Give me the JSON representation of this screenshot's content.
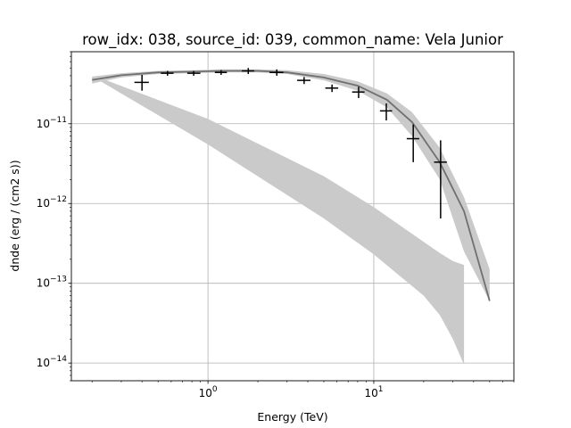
{
  "chart_data": {
    "type": "line",
    "title": "row_idx: 038, source_id: 039, common_name: Vela Junior",
    "xlabel": "Energy (TeV)",
    "ylabel": "dnde (erg / (cm2 s))",
    "xscale": "log",
    "yscale": "log",
    "xlim": [
      0.15,
      70
    ],
    "ylim": [
      6e-15,
      8e-11
    ],
    "grid": true,
    "x_ticks": [
      {
        "value": 1,
        "base": "10",
        "exp": "0"
      },
      {
        "value": 10,
        "base": "10",
        "exp": "1"
      }
    ],
    "y_ticks": [
      {
        "value": 1e-14,
        "base": "10",
        "exp": "−14"
      },
      {
        "value": 1e-13,
        "base": "10",
        "exp": "−13"
      },
      {
        "value": 1e-12,
        "base": "10",
        "exp": "−12"
      },
      {
        "value": 1e-11,
        "base": "10",
        "exp": "−11"
      }
    ],
    "colors": {
      "band": "#cacaca",
      "model": "#707070",
      "points": "#000000",
      "grid": "#b0b0b0"
    },
    "model_band": {
      "x": [
        0.2,
        0.3,
        0.5,
        0.8,
        1.2,
        2,
        3,
        5,
        8,
        12,
        17,
        25,
        35,
        50
      ],
      "upper": [
        3.9e-11,
        4.3e-11,
        4.6e-11,
        4.7e-11,
        4.8e-11,
        4.8e-11,
        4.7e-11,
        4.2e-11,
        3.4e-11,
        2.4e-11,
        1.4e-11,
        5e-12,
        1.2e-12,
        1.5e-13
      ],
      "lower": [
        3.2e-11,
        3.8e-11,
        4.2e-11,
        4.3e-11,
        4.4e-11,
        4.4e-11,
        4.2e-11,
        3.5e-11,
        2.6e-11,
        1.6e-11,
        7e-12,
        2e-12,
        2.5e-13,
        6e-14
      ]
    },
    "second_band": {
      "x": [
        0.22,
        1,
        5,
        10,
        20,
        25,
        30,
        35
      ],
      "upper": [
        3.8e-11,
        1.15e-11,
        2.2e-12,
        9e-13,
        3.3e-13,
        2.4e-13,
        1.9e-13,
        1.7e-13
      ],
      "lower": [
        3.5e-11,
        5.5e-12,
        6.5e-13,
        2.3e-13,
        7e-14,
        4e-14,
        2e-14,
        9.5e-15
      ]
    },
    "model_curve": {
      "x": [
        0.2,
        0.3,
        0.5,
        0.8,
        1.2,
        2,
        3,
        5,
        8,
        12,
        17,
        25,
        35,
        50
      ],
      "y": [
        3.55e-11,
        4.05e-11,
        4.4e-11,
        4.5e-11,
        4.6e-11,
        4.6e-11,
        4.4e-11,
        3.8e-11,
        3e-11,
        2e-11,
        1.05e-11,
        3.3e-12,
        8e-13,
        6e-14
      ]
    },
    "flux_points": [
      {
        "x": 0.4,
        "y": 3.3e-11,
        "yerr_lo": 2.6e-11,
        "yerr_hi": 4.1e-11,
        "xerr_lo": 0.36,
        "xerr_hi": 0.44
      },
      {
        "x": 0.57,
        "y": 4.3e-11,
        "yerr_lo": 4e-11,
        "yerr_hi": 4.6e-11,
        "xerr_lo": 0.52,
        "xerr_hi": 0.62
      },
      {
        "x": 0.82,
        "y": 4.3e-11,
        "yerr_lo": 4e-11,
        "yerr_hi": 4.6e-11,
        "xerr_lo": 0.75,
        "xerr_hi": 0.9
      },
      {
        "x": 1.2,
        "y": 4.4e-11,
        "yerr_lo": 4.1e-11,
        "yerr_hi": 4.7e-11,
        "xerr_lo": 1.1,
        "xerr_hi": 1.3
      },
      {
        "x": 1.75,
        "y": 4.6e-11,
        "yerr_lo": 4.2e-11,
        "yerr_hi": 5e-11,
        "xerr_lo": 1.6,
        "xerr_hi": 1.9
      },
      {
        "x": 2.6,
        "y": 4.4e-11,
        "yerr_lo": 4e-11,
        "yerr_hi": 4.8e-11,
        "xerr_lo": 2.35,
        "xerr_hi": 2.85
      },
      {
        "x": 3.8,
        "y": 3.5e-11,
        "yerr_lo": 3.15e-11,
        "yerr_hi": 3.85e-11,
        "xerr_lo": 3.45,
        "xerr_hi": 4.15
      },
      {
        "x": 5.6,
        "y": 2.8e-11,
        "yerr_lo": 2.5e-11,
        "yerr_hi": 3.1e-11,
        "xerr_lo": 5.1,
        "xerr_hi": 6.1
      },
      {
        "x": 8.1,
        "y": 2.5e-11,
        "yerr_lo": 2.1e-11,
        "yerr_hi": 2.9e-11,
        "xerr_lo": 7.4,
        "xerr_hi": 8.8
      },
      {
        "x": 11.9,
        "y": 1.45e-11,
        "yerr_lo": 1.1e-11,
        "yerr_hi": 1.8e-11,
        "xerr_lo": 10.9,
        "xerr_hi": 12.9
      },
      {
        "x": 17.3,
        "y": 6.5e-12,
        "yerr_lo": 3.3e-12,
        "yerr_hi": 9.8e-12,
        "xerr_lo": 15.8,
        "xerr_hi": 18.8
      },
      {
        "x": 25.3,
        "y": 3.3e-12,
        "yerr_lo": 6.5e-13,
        "yerr_hi": 6.2e-12,
        "xerr_lo": 23.1,
        "xerr_hi": 27.6
      }
    ]
  }
}
